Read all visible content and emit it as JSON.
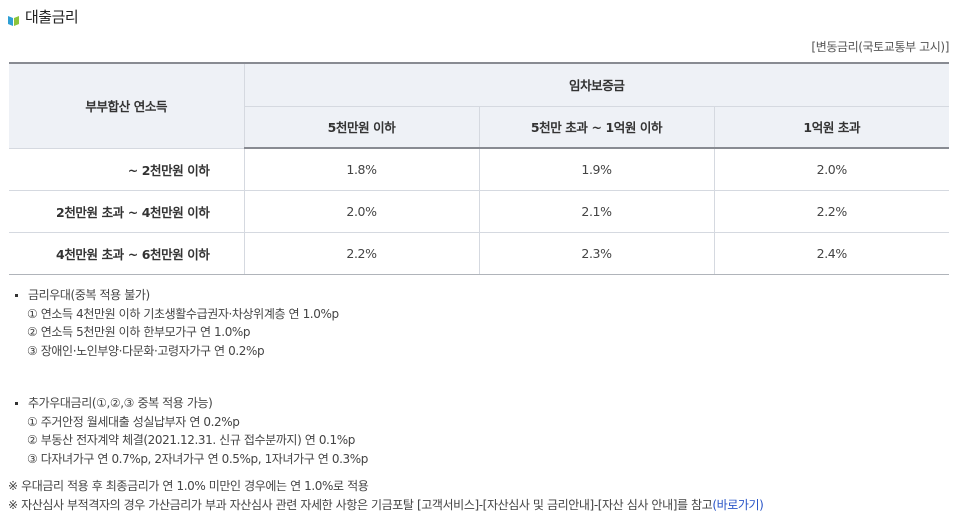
{
  "title": "대출금리",
  "note": "[변동금리(국토교통부 고시)]",
  "table": {
    "income_header": "부부합산 연소득",
    "deposit_header": "임차보증금",
    "columns": [
      "5천만원 이하",
      "5천만 초과 ~ 1억원 이하",
      "1억원 초과"
    ],
    "rows": [
      {
        "label": "~ 2천만원 이하",
        "values": [
          "1.8%",
          "1.9%",
          "2.0%"
        ]
      },
      {
        "label": "2천만원 초과  ~ 4천만원 이하",
        "values": [
          "2.0%",
          "2.1%",
          "2.2%"
        ]
      },
      {
        "label": "4천만원 초과  ~ 6천만원 이하",
        "values": [
          "2.2%",
          "2.3%",
          "2.4%"
        ]
      }
    ]
  },
  "preferential": {
    "heading": "금리우대(중복 적용 불가)",
    "items": [
      "① 연소득 4천만원 이하 기초생활수급권자·차상위계층 연 1.0%p",
      "② 연소득 5천만원 이하 한부모가구 연 1.0%p",
      "③ 장애인·노인부양·다문화·고령자가구 연 0.2%p"
    ]
  },
  "additional": {
    "heading": "추가우대금리(①,②,③ 중복 적용 가능)",
    "items": [
      "① 주거안정 월세대출 성실납부자 연 0.2%p",
      "② 부동산 전자계약 체결(2021.12.31. 신규 접수분까지) 연 0.1%p",
      "③ 다자녀가구 연 0.7%p, 2자녀가구 연 0.5%p, 1자녀가구 연 0.3%p"
    ]
  },
  "footnotes": {
    "line1": "※ 우대금리 적용 후 최종금리가 연 1.0% 미만인 경우에는 연 1.0%로 적용",
    "line2": "※ 자산심사 부적격자의 경우 가산금리가 부과 자산심사 관련 자세한 사항은 기금포탈 [고객서비스]-[자산심사 및 금리안내]-[자산 심사 안내]를 참고",
    "link": "(바로가기)"
  }
}
